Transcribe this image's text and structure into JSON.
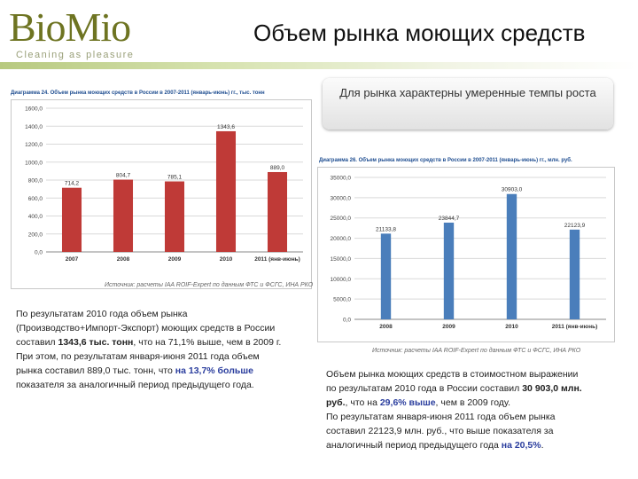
{
  "logo": {
    "word": "BioMio",
    "tagline": "Cleaning as pleasure"
  },
  "title": "Объем рынка моющих средств",
  "callout": "Для рынка характерны умеренные темпы роста",
  "chart_left": {
    "caption": "Диаграмма 24. Объем рынка моющих средств в России в 2007-2011 (январь-июнь) гг., тыс. тонн",
    "source": "Источник: расчеты IAA ROIF-Expert по данным ФТС и ФСГС, ИНА РКО"
  },
  "chart_right": {
    "caption": "Диаграмма 26. Объем рынка моющих средств в России в 2007-2011 (январь-июнь) гг., млн. руб.",
    "source": "Источник: расчеты IAA ROIF-Expert по данным ФТС и ФСГС, ИНА РКО"
  },
  "chart_data": [
    {
      "type": "bar",
      "categories": [
        "2007",
        "2008",
        "2009",
        "2010",
        "2011 (янв-июнь)"
      ],
      "values": [
        714.2,
        804.7,
        785.1,
        1343.6,
        889.0
      ],
      "data_labels": [
        "714,2",
        "804,7",
        "785,1",
        "1343,6",
        "889,0"
      ],
      "yticks": [
        "0,0",
        "200,0",
        "400,0",
        "600,0",
        "800,0",
        "1000,0",
        "1200,0",
        "1400,0",
        "1600,0"
      ],
      "ylim": [
        0,
        1600
      ],
      "color": "#bf3a37",
      "grid": true
    },
    {
      "type": "bar",
      "categories": [
        "2008",
        "2009",
        "2010",
        "2011 (янв-июнь)"
      ],
      "values": [
        21133.8,
        23844.7,
        30903.0,
        22123.9
      ],
      "data_labels": [
        "21133,8",
        "23844,7",
        "30903,0",
        "22123,9"
      ],
      "yticks": [
        "0,0",
        "5000,0",
        "10000,0",
        "15000,0",
        "20000,0",
        "25000,0",
        "30000,0",
        "35000,0"
      ],
      "ylim": [
        0,
        35000
      ],
      "color": "#4a7ebb",
      "grid": true
    }
  ],
  "text_left": {
    "p1": "По результатам 2010 года объем рынка",
    "p2": "(Производство+Импорт-Экспорт) моющих средств в России",
    "p3a": "составил ",
    "p3b": "1343,6 тыс. тонн",
    "p3c": ", что на 71,1% выше, чем в 2009 г.",
    "p4": "При этом, по результатам января-июня 2011 года объем",
    "p5a": "рынка составил 889,0 тыс. тонн, что ",
    "p5b": "на 13,7% больше",
    "p6": "показателя за аналогичный период предыдущего года."
  },
  "text_right": {
    "l1": "Объем рынка моющих средств в стоимостном выражении",
    "l2a": "по результатам 2010 года в России составил ",
    "l2b": "30 903,0 млн.",
    "l3a": "руб.",
    "l3b": ", что на ",
    "l3c": "29,6% выше",
    "l3d": ", чем в 2009 году.",
    "l4": "По результатам января-июня 2011 года объем рынка",
    "l5": "составил 22123,9 млн. руб., что выше показателя за",
    "l6a": "аналогичный период предыдущего года ",
    "l6b": "на 20,5%",
    "l6c": "."
  }
}
